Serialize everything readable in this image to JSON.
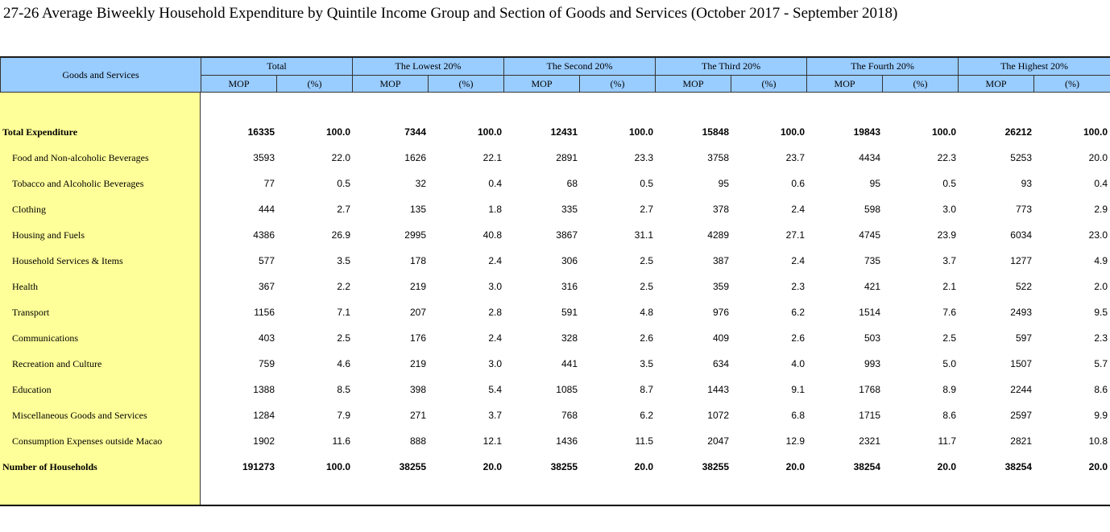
{
  "title": "27-26  Average Biweekly Household Expenditure by Quintile Income Group and Section of Goods and Services (October 2017 - September 2018)",
  "header": {
    "corner": "Goods and Services",
    "groups": [
      "Total",
      "The Lowest 20%",
      "The Second 20%",
      "The Third 20%",
      "The Fourth 20%",
      "The Highest 20%"
    ],
    "sub": [
      "MOP",
      "(%)"
    ]
  },
  "rows": [
    {
      "label": "Total Expenditure",
      "bold": true,
      "values": [
        "16335",
        "100.0",
        "7344",
        "100.0",
        "12431",
        "100.0",
        "15848",
        "100.0",
        "19843",
        "100.0",
        "26212",
        "100.0"
      ]
    },
    {
      "label": "Food and Non-alcoholic Beverages",
      "values": [
        "3593",
        "22.0",
        "1626",
        "22.1",
        "2891",
        "23.3",
        "3758",
        "23.7",
        "4434",
        "22.3",
        "5253",
        "20.0"
      ]
    },
    {
      "label": "Tobacco and Alcoholic Beverages",
      "values": [
        "77",
        "0.5",
        "32",
        "0.4",
        "68",
        "0.5",
        "95",
        "0.6",
        "95",
        "0.5",
        "93",
        "0.4"
      ]
    },
    {
      "label": "Clothing",
      "values": [
        "444",
        "2.7",
        "135",
        "1.8",
        "335",
        "2.7",
        "378",
        "2.4",
        "598",
        "3.0",
        "773",
        "2.9"
      ]
    },
    {
      "label": "Housing and Fuels",
      "values": [
        "4386",
        "26.9",
        "2995",
        "40.8",
        "3867",
        "31.1",
        "4289",
        "27.1",
        "4745",
        "23.9",
        "6034",
        "23.0"
      ]
    },
    {
      "label": "Household Services & Items",
      "values": [
        "577",
        "3.5",
        "178",
        "2.4",
        "306",
        "2.5",
        "387",
        "2.4",
        "735",
        "3.7",
        "1277",
        "4.9"
      ]
    },
    {
      "label": "Health",
      "values": [
        "367",
        "2.2",
        "219",
        "3.0",
        "316",
        "2.5",
        "359",
        "2.3",
        "421",
        "2.1",
        "522",
        "2.0"
      ]
    },
    {
      "label": "Transport",
      "values": [
        "1156",
        "7.1",
        "207",
        "2.8",
        "591",
        "4.8",
        "976",
        "6.2",
        "1514",
        "7.6",
        "2493",
        "9.5"
      ]
    },
    {
      "label": "Communications",
      "values": [
        "403",
        "2.5",
        "176",
        "2.4",
        "328",
        "2.6",
        "409",
        "2.6",
        "503",
        "2.5",
        "597",
        "2.3"
      ]
    },
    {
      "label": "Recreation and Culture",
      "values": [
        "759",
        "4.6",
        "219",
        "3.0",
        "441",
        "3.5",
        "634",
        "4.0",
        "993",
        "5.0",
        "1507",
        "5.7"
      ]
    },
    {
      "label": "Education",
      "values": [
        "1388",
        "8.5",
        "398",
        "5.4",
        "1085",
        "8.7",
        "1443",
        "9.1",
        "1768",
        "8.9",
        "2244",
        "8.6"
      ]
    },
    {
      "label": "Miscellaneous Goods and Services",
      "values": [
        "1284",
        "7.9",
        "271",
        "3.7",
        "768",
        "6.2",
        "1072",
        "6.8",
        "1715",
        "8.6",
        "2597",
        "9.9"
      ]
    },
    {
      "label": "Consumption Expenses outside Macao",
      "values": [
        "1902",
        "11.6",
        "888",
        "12.1",
        "1436",
        "11.5",
        "2047",
        "12.9",
        "2321",
        "11.7",
        "2821",
        "10.8"
      ]
    },
    {
      "label": "Number of Households",
      "bold": true,
      "values": [
        "191273",
        "100.0",
        "38255",
        "20.0",
        "38255",
        "20.0",
        "38255",
        "20.0",
        "38254",
        "20.0",
        "38254",
        "20.0"
      ]
    }
  ],
  "colors": {
    "header_bg": "#99ccff",
    "label_bg": "#ffff99"
  }
}
